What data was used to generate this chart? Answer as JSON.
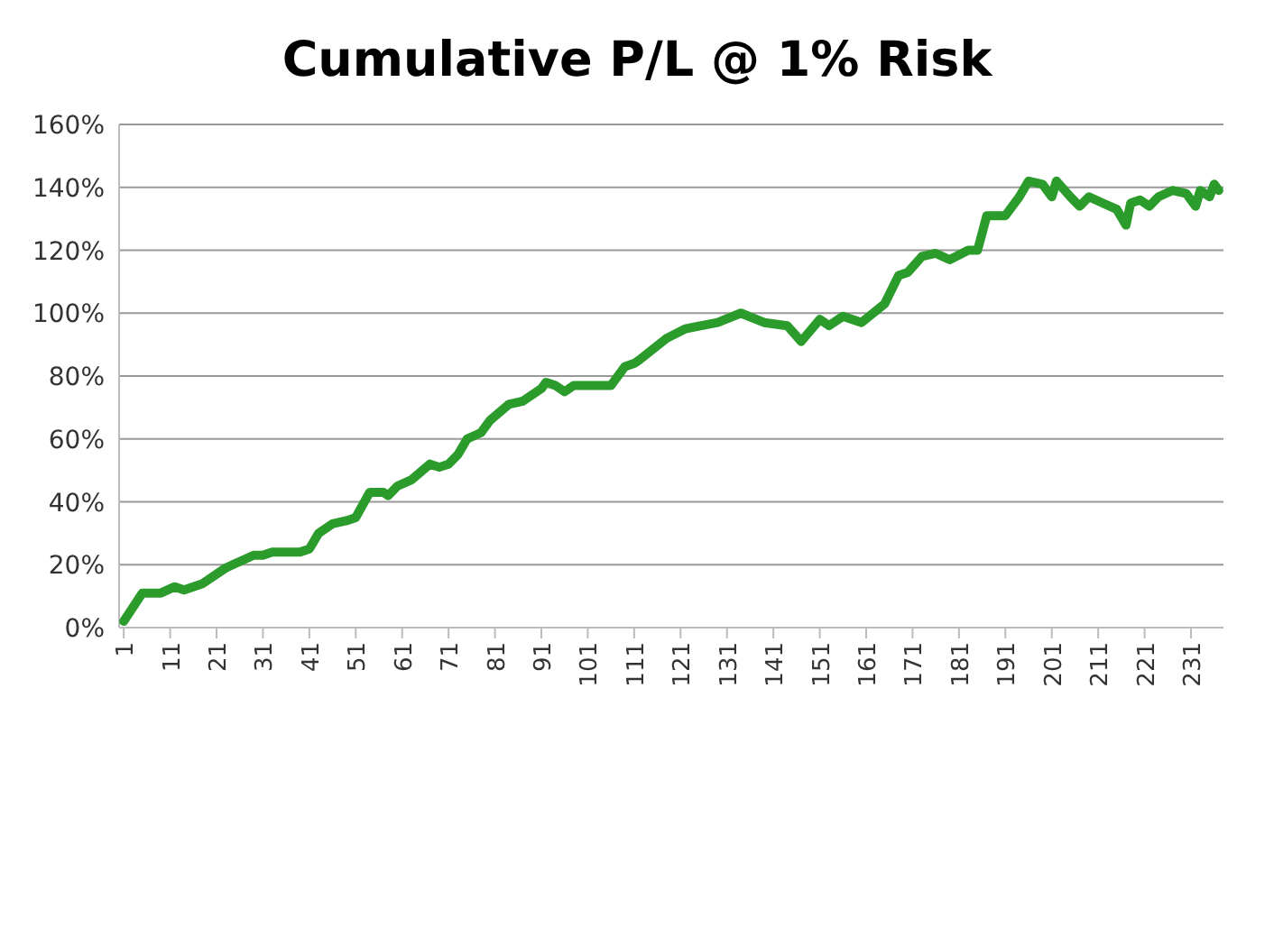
{
  "chart_data": {
    "type": "line",
    "title": "Cumulative P/L @ 1% Risk",
    "x": [
      1,
      5,
      9,
      12,
      14,
      18,
      23,
      26,
      29,
      31,
      33,
      39,
      41,
      43,
      44,
      46,
      49,
      51,
      54,
      57,
      58,
      60,
      63,
      67,
      69,
      71,
      73,
      75,
      78,
      80,
      84,
      87,
      91,
      92,
      94,
      96,
      98,
      102,
      106,
      109,
      111,
      112,
      118,
      122,
      129,
      134,
      139,
      144,
      147,
      151,
      153,
      156,
      160,
      165,
      168,
      170,
      173,
      176,
      179,
      183,
      185,
      187,
      191,
      194,
      196,
      199,
      201,
      202,
      205,
      207,
      209,
      212,
      215,
      217,
      218,
      220,
      222,
      224,
      227,
      230,
      232,
      233,
      235,
      236,
      237
    ],
    "series": [
      {
        "color": "#2b9b2b",
        "values": [
          2,
          11,
          11,
          13,
          12,
          14,
          19,
          21,
          23,
          23,
          24,
          24,
          25,
          30,
          31,
          33,
          34,
          35,
          43,
          43,
          42,
          45,
          47,
          52,
          51,
          52,
          55,
          60,
          62,
          66,
          71,
          72,
          76,
          78,
          77,
          75,
          77,
          77,
          77,
          83,
          84,
          85,
          92,
          95,
          97,
          100,
          97,
          96,
          91,
          98,
          96,
          99,
          97,
          103,
          112,
          113,
          118,
          119,
          117,
          120,
          120,
          131,
          131,
          137,
          142,
          141,
          137,
          142,
          137,
          134,
          137,
          135,
          133,
          128,
          135,
          136,
          134,
          137,
          139,
          138,
          134,
          139,
          137,
          141,
          139
        ]
      }
    ],
    "xlim": [
      0,
      238
    ],
    "xticks": [
      1,
      11,
      21,
      31,
      41,
      51,
      61,
      71,
      81,
      91,
      101,
      111,
      121,
      131,
      141,
      151,
      161,
      171,
      181,
      191,
      201,
      211,
      221,
      231
    ],
    "ylim": [
      0,
      160
    ],
    "yticks": [
      {
        "value": 0,
        "label": "0%"
      },
      {
        "value": 20,
        "label": "20%"
      },
      {
        "value": 40,
        "label": "40%"
      },
      {
        "value": 60,
        "label": "60%"
      },
      {
        "value": 80,
        "label": "80%"
      },
      {
        "value": 100,
        "label": "100%"
      },
      {
        "value": 120,
        "label": "120%"
      },
      {
        "value": 140,
        "label": "140%"
      },
      {
        "value": 160,
        "label": "160%"
      }
    ],
    "grid": "y",
    "line_style": "solid"
  }
}
